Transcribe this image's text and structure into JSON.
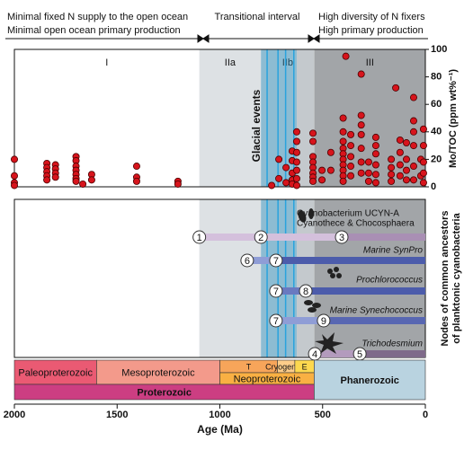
{
  "chart_data": {
    "type": "scatter",
    "header": {
      "left": [
        "Minimal fixed N supply to the open ocean",
        "Minimal open ocean primary production"
      ],
      "middle": "Transitional interval",
      "right": [
        "High diversity of N fixers",
        "High primary production"
      ]
    },
    "xlabel": "Age (Ma)",
    "xlim": [
      2000,
      0
    ],
    "xticks": [
      2000,
      1500,
      1000,
      500,
      0
    ],
    "ylabel": "Mo/TOC (ppm wt%⁻¹)",
    "ylim": [
      0,
      100
    ],
    "yticks": [
      0,
      20,
      40,
      60,
      80,
      100
    ],
    "regions": [
      {
        "label": "I",
        "from": 2000,
        "to": 1100,
        "color": "#ffffff"
      },
      {
        "label": "IIa",
        "from": 1100,
        "to": 800,
        "color": "#dde1e4"
      },
      {
        "label": "IIb",
        "from": 800,
        "to": 540,
        "color": "#c4c9cd"
      },
      {
        "label": "III",
        "from": 540,
        "to": 0,
        "color": "#a2a5a8"
      }
    ],
    "glacial_label": "Glacial events",
    "glacial_band": [
      800,
      626
    ],
    "glacial_lines": [
      770,
      717,
      680,
      640
    ],
    "glacial_color": "#29a3dd",
    "series": [
      {
        "color": "#d7141c",
        "x": [
          2000,
          2000,
          2000,
          2000,
          1842,
          1842,
          1842,
          1842,
          1842,
          1800,
          1800,
          1800,
          1800,
          1700,
          1700,
          1700,
          1700,
          1700,
          1700,
          1700,
          1667,
          1624,
          1624,
          1405,
          1405,
          1405,
          1204,
          1204,
          748,
          713,
          713,
          678,
          678,
          648,
          648,
          648,
          648,
          648,
          626,
          626,
          626,
          626,
          626,
          626,
          626,
          547,
          547,
          547,
          547,
          547,
          547,
          547,
          547,
          503,
          503,
          460,
          460,
          400,
          400,
          400,
          400,
          400,
          400,
          400,
          400,
          400,
          400,
          387,
          363,
          363,
          363,
          363,
          363,
          312,
          312,
          312,
          312,
          312,
          312,
          312,
          276,
          276,
          276,
          241,
          241,
          241,
          241,
          241,
          241,
          166,
          166,
          166,
          166,
          144,
          123,
          123,
          123,
          123,
          92,
          92,
          92,
          92,
          57,
          57,
          57,
          57,
          57,
          57,
          22,
          22,
          9,
          9,
          9,
          9,
          9
        ],
        "values": [
          20,
          8,
          3,
          1,
          17,
          14,
          11,
          8,
          5,
          16,
          13,
          10,
          7,
          22,
          19,
          15,
          12,
          9,
          6,
          4,
          2,
          9,
          5,
          15,
          7,
          4,
          4,
          2,
          1,
          20,
          6,
          14,
          3,
          26,
          19,
          10,
          5,
          2,
          40,
          33,
          25,
          18,
          12,
          6,
          1,
          39,
          33,
          22,
          18,
          14,
          10,
          7,
          4,
          12,
          5,
          25,
          12,
          50,
          40,
          33,
          28,
          24,
          20,
          16,
          12,
          8,
          4,
          95,
          38,
          30,
          22,
          15,
          8,
          82,
          52,
          45,
          38,
          28,
          18,
          10,
          18,
          10,
          4,
          36,
          30,
          24,
          16,
          9,
          3,
          20,
          14,
          9,
          4,
          72,
          34,
          25,
          16,
          8,
          32,
          20,
          12,
          5,
          65,
          48,
          40,
          30,
          15,
          5,
          20,
          8,
          42,
          30,
          18,
          10,
          3
        ]
      }
    ],
    "nodes_label": [
      "Nodes of common ancestors",
      "of planktonic cyanobacteria"
    ],
    "lineages": [
      {
        "taxa": [
          "Cyanobacterium UCYN-A",
          "Cyanothece & Chocosphaera"
        ],
        "bars": [
          {
            "from": 1100,
            "to": 407,
            "color": "#d4c0dc"
          },
          {
            "from": 407,
            "to": 0,
            "color": "#a98fb4"
          }
        ],
        "nodes": [
          {
            "label": "1",
            "age": 1100
          },
          {
            "label": "2",
            "age": 800
          },
          {
            "label": "3",
            "age": 407
          }
        ]
      },
      {
        "taxa": [
          "Marine SynPro"
        ],
        "bars": [
          {
            "from": 867,
            "to": 727,
            "color": "#8f9dd6"
          },
          {
            "from": 727,
            "to": 0,
            "color": "#4c5cab"
          }
        ],
        "nodes": [
          {
            "label": "6",
            "age": 867
          },
          {
            "label": "7",
            "age": 727
          }
        ]
      },
      {
        "taxa": [
          "Prochlorococcus"
        ],
        "bars": [
          {
            "from": 727,
            "to": 582,
            "color": "#6a79c0"
          },
          {
            "from": 582,
            "to": 0,
            "color": "#4c5cab"
          }
        ],
        "nodes": [
          {
            "label": "7",
            "age": 727
          },
          {
            "label": "8",
            "age": 582
          }
        ]
      },
      {
        "taxa": [
          "Marine Synechococcus"
        ],
        "bars": [
          {
            "from": 727,
            "to": 495,
            "color": "#8f9dd6"
          },
          {
            "from": 495,
            "to": 0,
            "color": "#5867b2"
          }
        ],
        "nodes": [
          {
            "label": "7",
            "age": 727
          },
          {
            "label": "9",
            "age": 495
          }
        ]
      },
      {
        "taxa": [
          "Trichodesmium"
        ],
        "bars": [
          {
            "from": 538,
            "to": 319,
            "color": "#b39bbd"
          },
          {
            "from": 319,
            "to": 0,
            "color": "#7f6a8a"
          }
        ],
        "nodes": [
          {
            "label": "4",
            "age": 538
          },
          {
            "label": "5",
            "age": 319
          }
        ]
      }
    ],
    "timescale": {
      "periods": [
        {
          "label": "T",
          "from": 1000,
          "to": 720,
          "color": "#f7a55a"
        },
        {
          "label": "Cryogenian",
          "from": 720,
          "to": 635,
          "color": "#fdcd8a"
        },
        {
          "label": "E",
          "from": 635,
          "to": 541,
          "color": "#fdd84f"
        }
      ],
      "eras": [
        {
          "label": "Paleoproterozoic",
          "from": 2000,
          "to": 1600,
          "color": "#ea5a73"
        },
        {
          "label": "Mesoproterozoic",
          "from": 1600,
          "to": 1000,
          "color": "#f39a8b"
        },
        {
          "label": "Neoproterozoic",
          "from": 1000,
          "to": 541,
          "color": "#f9b043"
        }
      ],
      "eons": [
        {
          "label": "Proterozoic",
          "from": 2000,
          "to": 541,
          "color": "#cc3e82"
        },
        {
          "label": "Phanerozoic",
          "from": 541,
          "to": 0,
          "color": "#b9d3e0"
        }
      ]
    }
  }
}
